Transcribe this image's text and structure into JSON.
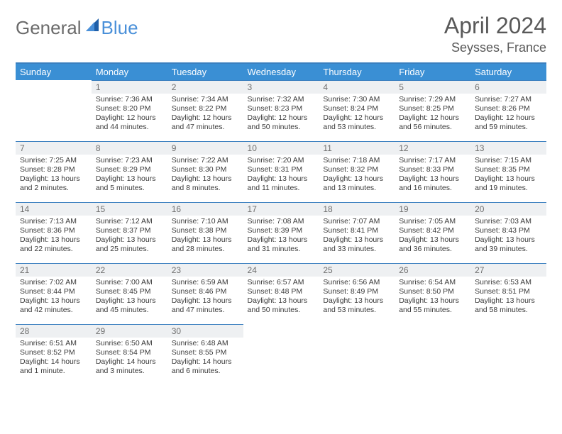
{
  "brand": {
    "text1": "General",
    "text2": "Blue",
    "color1": "#6b6b6b",
    "color2": "#4a90d9"
  },
  "title": "April 2024",
  "location": "Seysses, France",
  "header_bg": "#3a8fd4",
  "header_fg": "#ffffff",
  "daynum_bg": "#eef0f2",
  "rule_color": "#3a7fbf",
  "weekdays": [
    "Sunday",
    "Monday",
    "Tuesday",
    "Wednesday",
    "Thursday",
    "Friday",
    "Saturday"
  ],
  "weeks": [
    [
      null,
      {
        "n": "1",
        "sr": "7:36 AM",
        "ss": "8:20 PM",
        "dl": "12 hours and 44 minutes."
      },
      {
        "n": "2",
        "sr": "7:34 AM",
        "ss": "8:22 PM",
        "dl": "12 hours and 47 minutes."
      },
      {
        "n": "3",
        "sr": "7:32 AM",
        "ss": "8:23 PM",
        "dl": "12 hours and 50 minutes."
      },
      {
        "n": "4",
        "sr": "7:30 AM",
        "ss": "8:24 PM",
        "dl": "12 hours and 53 minutes."
      },
      {
        "n": "5",
        "sr": "7:29 AM",
        "ss": "8:25 PM",
        "dl": "12 hours and 56 minutes."
      },
      {
        "n": "6",
        "sr": "7:27 AM",
        "ss": "8:26 PM",
        "dl": "12 hours and 59 minutes."
      }
    ],
    [
      {
        "n": "7",
        "sr": "7:25 AM",
        "ss": "8:28 PM",
        "dl": "13 hours and 2 minutes."
      },
      {
        "n": "8",
        "sr": "7:23 AM",
        "ss": "8:29 PM",
        "dl": "13 hours and 5 minutes."
      },
      {
        "n": "9",
        "sr": "7:22 AM",
        "ss": "8:30 PM",
        "dl": "13 hours and 8 minutes."
      },
      {
        "n": "10",
        "sr": "7:20 AM",
        "ss": "8:31 PM",
        "dl": "13 hours and 11 minutes."
      },
      {
        "n": "11",
        "sr": "7:18 AM",
        "ss": "8:32 PM",
        "dl": "13 hours and 13 minutes."
      },
      {
        "n": "12",
        "sr": "7:17 AM",
        "ss": "8:33 PM",
        "dl": "13 hours and 16 minutes."
      },
      {
        "n": "13",
        "sr": "7:15 AM",
        "ss": "8:35 PM",
        "dl": "13 hours and 19 minutes."
      }
    ],
    [
      {
        "n": "14",
        "sr": "7:13 AM",
        "ss": "8:36 PM",
        "dl": "13 hours and 22 minutes."
      },
      {
        "n": "15",
        "sr": "7:12 AM",
        "ss": "8:37 PM",
        "dl": "13 hours and 25 minutes."
      },
      {
        "n": "16",
        "sr": "7:10 AM",
        "ss": "8:38 PM",
        "dl": "13 hours and 28 minutes."
      },
      {
        "n": "17",
        "sr": "7:08 AM",
        "ss": "8:39 PM",
        "dl": "13 hours and 31 minutes."
      },
      {
        "n": "18",
        "sr": "7:07 AM",
        "ss": "8:41 PM",
        "dl": "13 hours and 33 minutes."
      },
      {
        "n": "19",
        "sr": "7:05 AM",
        "ss": "8:42 PM",
        "dl": "13 hours and 36 minutes."
      },
      {
        "n": "20",
        "sr": "7:03 AM",
        "ss": "8:43 PM",
        "dl": "13 hours and 39 minutes."
      }
    ],
    [
      {
        "n": "21",
        "sr": "7:02 AM",
        "ss": "8:44 PM",
        "dl": "13 hours and 42 minutes."
      },
      {
        "n": "22",
        "sr": "7:00 AM",
        "ss": "8:45 PM",
        "dl": "13 hours and 45 minutes."
      },
      {
        "n": "23",
        "sr": "6:59 AM",
        "ss": "8:46 PM",
        "dl": "13 hours and 47 minutes."
      },
      {
        "n": "24",
        "sr": "6:57 AM",
        "ss": "8:48 PM",
        "dl": "13 hours and 50 minutes."
      },
      {
        "n": "25",
        "sr": "6:56 AM",
        "ss": "8:49 PM",
        "dl": "13 hours and 53 minutes."
      },
      {
        "n": "26",
        "sr": "6:54 AM",
        "ss": "8:50 PM",
        "dl": "13 hours and 55 minutes."
      },
      {
        "n": "27",
        "sr": "6:53 AM",
        "ss": "8:51 PM",
        "dl": "13 hours and 58 minutes."
      }
    ],
    [
      {
        "n": "28",
        "sr": "6:51 AM",
        "ss": "8:52 PM",
        "dl": "14 hours and 1 minute."
      },
      {
        "n": "29",
        "sr": "6:50 AM",
        "ss": "8:54 PM",
        "dl": "14 hours and 3 minutes."
      },
      {
        "n": "30",
        "sr": "6:48 AM",
        "ss": "8:55 PM",
        "dl": "14 hours and 6 minutes."
      },
      null,
      null,
      null,
      null
    ]
  ],
  "labels": {
    "sunrise": "Sunrise: ",
    "sunset": "Sunset: ",
    "daylight": "Daylight: "
  }
}
